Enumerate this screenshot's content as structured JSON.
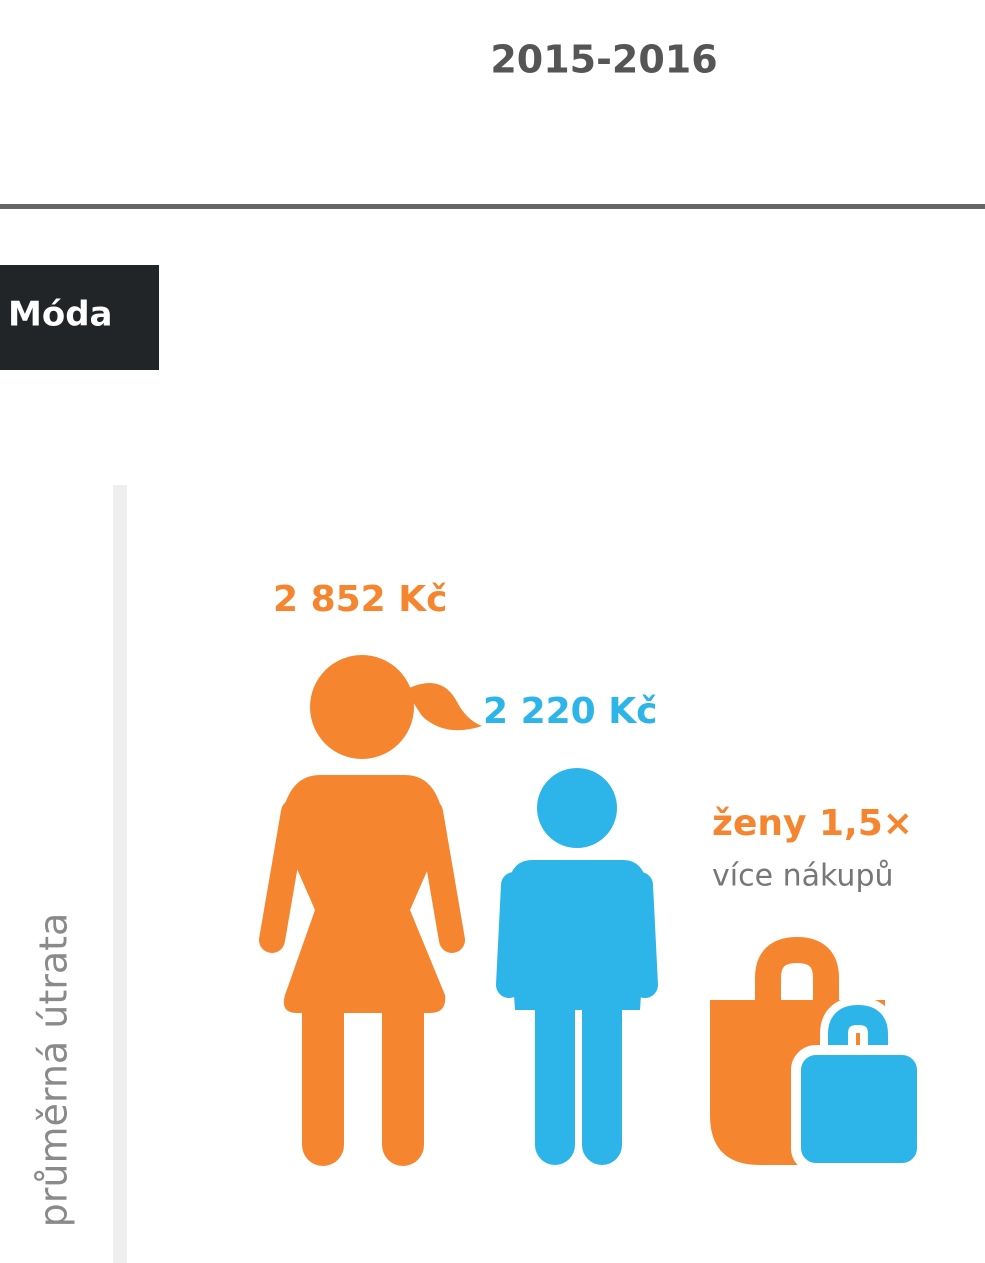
{
  "header": {
    "title": "2015-2016"
  },
  "category": "Móda",
  "axis_label": "průměrná útrata",
  "women": {
    "value": "2 852 Kč"
  },
  "men": {
    "value": "2 220 Kč"
  },
  "note": {
    "highlight": "ženy 1,5×",
    "text": "více nákupů"
  }
}
